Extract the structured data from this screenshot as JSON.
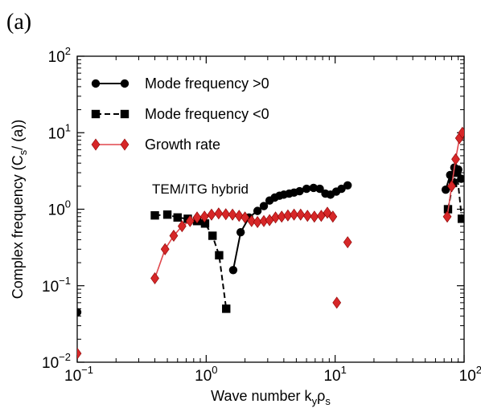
{
  "panel_label": "(a)",
  "chart_data": {
    "type": "scatter",
    "xlabel": "Wave number k_yρ_s",
    "ylabel": "Complex frequency (C_s/ (a))",
    "x_scale": "log",
    "y_scale": "log",
    "xlim": [
      0.1,
      100
    ],
    "ylim": [
      0.01,
      100
    ],
    "x_tick_labels": [
      {
        "value": 0.1,
        "base": "10",
        "exp": "−1"
      },
      {
        "value": 1,
        "base": "10",
        "exp": "0"
      },
      {
        "value": 10,
        "base": "10",
        "exp": "1"
      },
      {
        "value": 100,
        "base": "10",
        "exp": "2"
      }
    ],
    "y_tick_labels": [
      {
        "value": 0.01,
        "base": "10",
        "exp": "−2"
      },
      {
        "value": 0.1,
        "base": "10",
        "exp": "−1"
      },
      {
        "value": 1,
        "base": "10",
        "exp": "0"
      },
      {
        "value": 10,
        "base": "10",
        "exp": "1"
      },
      {
        "value": 100,
        "base": "10",
        "exp": "2"
      }
    ],
    "legend_position": "top-left",
    "annotations": [
      {
        "text": "TEM/ITG hybrid",
        "x": 0.9,
        "y": 1.6
      }
    ],
    "series": [
      {
        "name": "Mode frequency >0",
        "marker": "circle",
        "line": "solid",
        "color": "#000000",
        "segments": [
          [
            [
              0.1,
              0.045
            ]
          ],
          [
            [
              1.62,
              0.16
            ],
            [
              1.85,
              0.5
            ],
            [
              2.15,
              0.78
            ],
            [
              2.5,
              0.95
            ],
            [
              2.8,
              1.1
            ],
            [
              3.1,
              1.3
            ],
            [
              3.4,
              1.42
            ],
            [
              3.7,
              1.5
            ],
            [
              4.0,
              1.55
            ],
            [
              4.4,
              1.6
            ],
            [
              4.8,
              1.65
            ],
            [
              5.3,
              1.72
            ],
            [
              6.0,
              1.85
            ],
            [
              6.8,
              1.9
            ],
            [
              7.6,
              1.85
            ],
            [
              8.4,
              1.6
            ],
            [
              9.2,
              1.55
            ],
            [
              10.2,
              1.7
            ],
            [
              11.2,
              1.85
            ],
            [
              12.5,
              2.05
            ]
          ],
          [
            [
              72,
              1.8
            ],
            [
              78,
              2.8
            ],
            [
              84,
              3.5
            ],
            [
              90,
              3.3
            ],
            [
              95,
              2.5
            ]
          ]
        ]
      },
      {
        "name": "Mode frequency <0",
        "marker": "square",
        "line": "dashed",
        "color": "#000000",
        "segments": [
          [
            [
              0.4,
              0.83
            ],
            [
              0.5,
              0.85
            ],
            [
              0.6,
              0.78
            ],
            [
              0.72,
              0.75
            ],
            [
              0.85,
              0.7
            ],
            [
              0.98,
              0.65
            ],
            [
              1.12,
              0.45
            ],
            [
              1.26,
              0.25
            ],
            [
              1.43,
              0.05
            ]
          ],
          [
            [
              75,
              1.0
            ],
            [
              82,
              2.2
            ],
            [
              88,
              3.0
            ],
            [
              96,
              0.75
            ]
          ]
        ]
      },
      {
        "name": "Growth rate",
        "marker": "diamond",
        "line": "solid",
        "color": "#d62728",
        "segments": [
          [
            [
              0.1,
              0.013
            ]
          ],
          [
            [
              0.4,
              0.125
            ],
            [
              0.48,
              0.3
            ],
            [
              0.56,
              0.45
            ],
            [
              0.65,
              0.6
            ],
            [
              0.75,
              0.7
            ],
            [
              0.85,
              0.78
            ],
            [
              0.97,
              0.8
            ],
            [
              1.1,
              0.85
            ],
            [
              1.25,
              0.88
            ],
            [
              1.42,
              0.86
            ],
            [
              1.6,
              0.85
            ],
            [
              1.8,
              0.82
            ],
            [
              2.0,
              0.78
            ],
            [
              2.25,
              0.7
            ],
            [
              2.5,
              0.68
            ],
            [
              2.8,
              0.7
            ],
            [
              3.1,
              0.72
            ],
            [
              3.45,
              0.78
            ],
            [
              3.85,
              0.8
            ],
            [
              4.3,
              0.83
            ],
            [
              4.8,
              0.85
            ],
            [
              5.4,
              0.85
            ],
            [
              6.1,
              0.82
            ],
            [
              6.9,
              0.8
            ],
            [
              7.8,
              0.82
            ],
            [
              8.7,
              0.9
            ],
            [
              9.6,
              0.8
            ]
          ],
          [
            [
              10.3,
              0.06
            ]
          ],
          [
            [
              12.5,
              0.37
            ]
          ],
          [
            [
              74,
              0.8
            ],
            [
              80,
              2.0
            ],
            [
              86,
              4.5
            ],
            [
              92,
              8.5
            ],
            [
              97,
              10.0
            ]
          ]
        ]
      }
    ]
  }
}
